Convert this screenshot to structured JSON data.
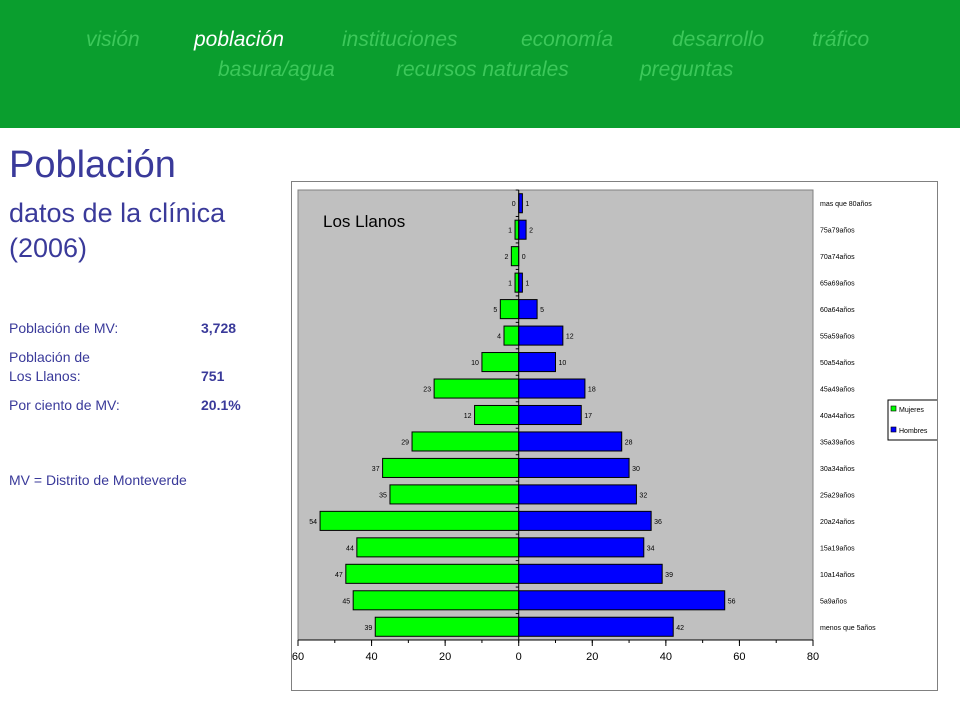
{
  "nav": {
    "items": [
      {
        "label": "visión",
        "active": false
      },
      {
        "label": "población",
        "active": true
      },
      {
        "label": "instituciones",
        "active": false
      },
      {
        "label": "economía",
        "active": false
      },
      {
        "label": "desarrollo",
        "active": false
      },
      {
        "label": "tráfico",
        "active": false
      },
      {
        "label": "basura/agua",
        "active": false
      },
      {
        "label": "recursos naturales",
        "active": false
      },
      {
        "label": "preguntas",
        "active": false
      }
    ]
  },
  "page": {
    "title": "Población",
    "subtitle_line1": "datos de la clínica",
    "subtitle_line2": "(2006)"
  },
  "stats": {
    "mv_label": "Población de MV:",
    "mv_value": "3,728",
    "llanos_label_1": "Población de",
    "llanos_label_2": "Los Llanos:",
    "llanos_value": "751",
    "percent_label": "Por ciento de MV:",
    "percent_value": "20.1%"
  },
  "footnote": "MV = Distrito de Monteverde",
  "colors": {
    "nav_bg": "#0a9e2e",
    "nav_text": "#3cc85a",
    "nav_active": "#ffffff",
    "heading": "#3a3a9a",
    "mujeres": "#00ff00",
    "hombres": "#0000ff",
    "plot_bg": "#c0c0c0"
  },
  "chart_data": {
    "type": "bar",
    "orientation": "horizontal",
    "title": "Los Llanos",
    "categories": [
      "mas que 80años",
      "75a79años",
      "70a74años",
      "65a69años",
      "60a64años",
      "55a59años",
      "50a54años",
      "45a49años",
      "40a44años",
      "35a39años",
      "30a34años",
      "25a29años",
      "20a24años",
      "15a19años",
      "10a14años",
      "5a9años",
      "menos que 5años"
    ],
    "series": [
      {
        "name": "Mujeres",
        "values": [
          0,
          1,
          2,
          1,
          5,
          4,
          10,
          23,
          12,
          29,
          37,
          35,
          54,
          44,
          47,
          45,
          39
        ],
        "labels": [
          "0",
          "1",
          "2",
          "1",
          "5",
          "4",
          "10",
          "23",
          "12",
          "29",
          "37",
          "35",
          "54",
          "44",
          "47",
          "45",
          "39"
        ]
      },
      {
        "name": "Hombres",
        "values": [
          1,
          2,
          0,
          1,
          5,
          12,
          10,
          18,
          17,
          28,
          30,
          32,
          36,
          34,
          39,
          56,
          42
        ],
        "labels": [
          "1",
          "2",
          "0",
          "1",
          "5",
          "12",
          "10",
          "18",
          "17",
          "28",
          "30",
          "32",
          "36",
          "34",
          "39",
          "56",
          "42"
        ]
      }
    ],
    "xlim": [
      -60,
      80
    ],
    "x_ticks": [
      -60,
      -40,
      -20,
      0,
      20,
      40,
      60,
      80
    ],
    "x_tick_labels": [
      "60",
      "40",
      "20",
      "0",
      "20",
      "40",
      "60",
      "80"
    ],
    "legend": "right",
    "grid": false
  }
}
